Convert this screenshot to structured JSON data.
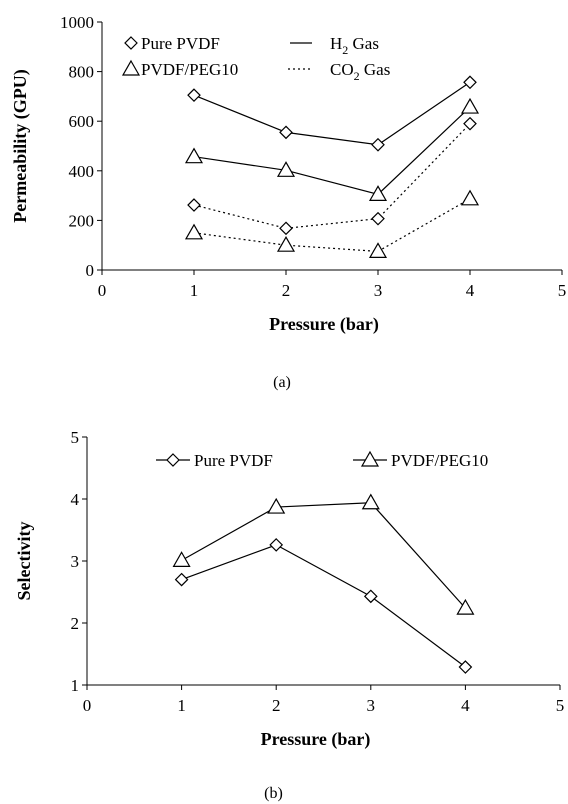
{
  "chart_data": [
    {
      "type": "line",
      "caption": "(a)",
      "xlabel": "Pressure  (bar)",
      "ylabel": "Permeability (GPU)",
      "xlim": [
        0,
        5
      ],
      "ylim": [
        0,
        1000
      ],
      "xticks": [
        0,
        1,
        2,
        3,
        4,
        5
      ],
      "yticks": [
        0,
        200,
        400,
        600,
        800,
        1000
      ],
      "grid": false,
      "legend_position": "top-left",
      "legend": {
        "markers": [
          "Pure PVDF",
          "PVDF/PEG10"
        ],
        "line_styles": [
          {
            "prefix": "H",
            "sub": "2",
            "suffix": " Gas",
            "style": "solid"
          },
          {
            "prefix": "CO",
            "sub": "2",
            "suffix": " Gas",
            "style": "dotted"
          }
        ]
      },
      "series": [
        {
          "material": "Pure PVDF",
          "gas": "H2",
          "marker": "diamond",
          "style": "solid",
          "x": [
            1,
            2,
            3,
            4
          ],
          "y": [
            705,
            555,
            505,
            757
          ]
        },
        {
          "material": "PVDF/PEG10",
          "gas": "H2",
          "marker": "triangle",
          "style": "solid",
          "x": [
            1,
            2,
            3,
            4
          ],
          "y": [
            457,
            402,
            305,
            657
          ]
        },
        {
          "material": "Pure PVDF",
          "gas": "CO2",
          "marker": "diamond",
          "style": "dotted",
          "x": [
            1,
            2,
            3,
            4
          ],
          "y": [
            262,
            168,
            207,
            590
          ]
        },
        {
          "material": "PVDF/PEG10",
          "gas": "CO2",
          "marker": "triangle",
          "style": "dotted",
          "x": [
            1,
            2,
            3,
            4
          ],
          "y": [
            150,
            100,
            75,
            287
          ]
        }
      ]
    },
    {
      "type": "line",
      "caption": "(b)",
      "xlabel": "Pressure  (bar)",
      "ylabel": "Selectivity",
      "xlim": [
        0,
        5
      ],
      "ylim": [
        1,
        5
      ],
      "xticks": [
        0,
        1,
        2,
        3,
        4,
        5
      ],
      "yticks": [
        1,
        2,
        3,
        4,
        5
      ],
      "grid": false,
      "legend_position": "top",
      "series": [
        {
          "name": "Pure PVDF",
          "marker": "diamond",
          "style": "solid",
          "x": [
            1,
            2,
            3,
            4
          ],
          "y": [
            2.7,
            3.26,
            2.43,
            1.29
          ]
        },
        {
          "name": "PVDF/PEG10",
          "marker": "triangle",
          "style": "solid",
          "x": [
            1,
            2,
            3,
            4
          ],
          "y": [
            3.01,
            3.87,
            3.94,
            2.24
          ]
        }
      ]
    }
  ]
}
